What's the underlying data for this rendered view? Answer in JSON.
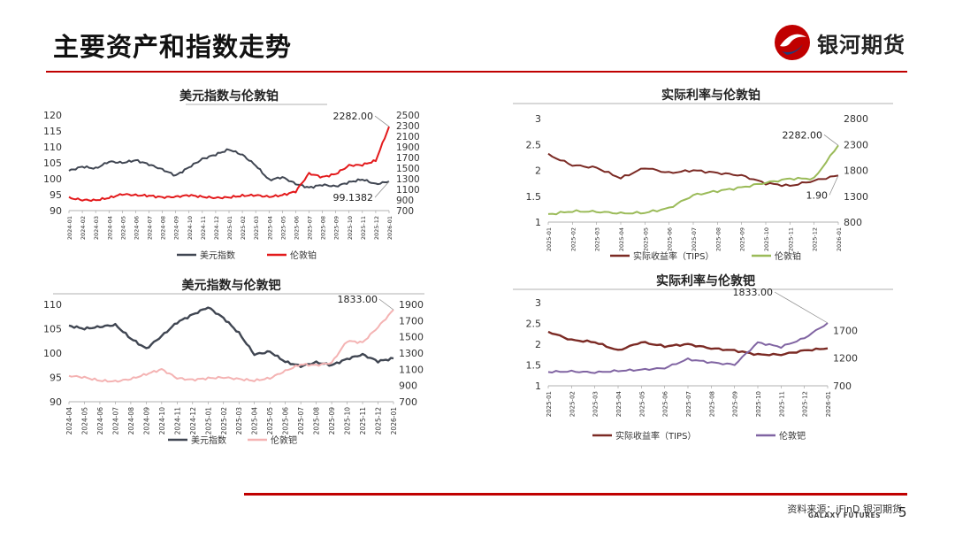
{
  "page": {
    "title": "主要资产和指数走势",
    "logo_text": "银河期货",
    "source": "资料来源：iFinD 银河期货",
    "galaxy": "GALAXY FUTURES",
    "page_number": "5"
  },
  "colors": {
    "accent": "#c00000",
    "dxy": "#404652",
    "pt": "#e31a1c",
    "pd": "#f4b3b3",
    "tips": "#7b2a24",
    "pt_green": "#9bbb59",
    "pd_purple": "#8064a2"
  },
  "chart_data": [
    {
      "type": "line",
      "title": "美元指数与伦敦铂",
      "x_ticks": [
        "2024-01",
        "2024-02",
        "2024-03",
        "2024-04",
        "2024-05",
        "2024-06",
        "2024-07",
        "2024-08",
        "2024-09",
        "2024-10",
        "2024-11",
        "2024-12",
        "2025-01",
        "2025-02",
        "2025-03",
        "2025-04",
        "2025-05",
        "2025-06",
        "2025-07",
        "2025-08",
        "2025-09",
        "2025-10",
        "2025-11",
        "2025-12",
        "2026-01"
      ],
      "y_left": {
        "min": 90,
        "max": 120,
        "ticks": [
          "90",
          "95",
          "100",
          "105",
          "110",
          "115",
          "120"
        ]
      },
      "y_right": {
        "min": 700,
        "max": 2500,
        "ticks": [
          "700",
          "900",
          "1100",
          "1300",
          "1500",
          "1700",
          "1900",
          "2100",
          "2300",
          "2500"
        ]
      },
      "series": [
        {
          "name": "美元指数",
          "axis": "left",
          "color": "#404652",
          "values": [
            102.5,
            103.8,
            103.2,
            105.4,
            105.0,
            105.8,
            104.5,
            102.9,
            101.0,
            103.6,
            106.2,
            107.6,
            109.2,
            107.5,
            104.2,
            99.6,
            100.5,
            98.4,
            97.2,
            98.1,
            97.6,
            98.9,
            99.8,
            98.3,
            99.1382
          ]
        },
        {
          "name": "伦敦铂",
          "axis": "right",
          "color": "#e31a1c",
          "values": [
            940,
            900,
            895,
            940,
            1010,
            990,
            980,
            950,
            960,
            990,
            960,
            940,
            950,
            980,
            990,
            960,
            990,
            1060,
            1400,
            1330,
            1390,
            1550,
            1560,
            1640,
            2282
          ]
        }
      ],
      "annotations": [
        {
          "text": "2282.00",
          "series": 1
        },
        {
          "text": "99.1382",
          "series": 0
        }
      ]
    },
    {
      "type": "line",
      "title": "实际利率与伦敦铂",
      "x_ticks": [
        "2025-01",
        "2025-02",
        "2025-03",
        "2025-04",
        "2025-05",
        "2025-06",
        "2025-07",
        "2025-08",
        "2025-09",
        "2025-10",
        "2025-11",
        "2025-12",
        "2026-01"
      ],
      "y_left": {
        "min": 1,
        "max": 3,
        "ticks": [
          "1",
          "1.5",
          "2",
          "2.5",
          "3"
        ]
      },
      "y_right": {
        "min": 800,
        "max": 2800,
        "ticks": [
          "800",
          "1300",
          "1800",
          "2300",
          "2800"
        ]
      },
      "series": [
        {
          "name": "实际收益率（TIPS）",
          "axis": "left",
          "color": "#7b2a24",
          "values": [
            2.3,
            2.1,
            2.05,
            1.85,
            2.05,
            1.95,
            2.0,
            1.95,
            1.9,
            1.75,
            1.7,
            1.8,
            1.9
          ]
        },
        {
          "name": "伦敦铂",
          "axis": "right",
          "color": "#9bbb59",
          "values": [
            950,
            1010,
            1000,
            970,
            980,
            1070,
            1320,
            1400,
            1470,
            1560,
            1640,
            1640,
            2282
          ]
        }
      ],
      "annotations": [
        {
          "text": "2282.00",
          "series": 1
        },
        {
          "text": "1.90",
          "series": 0
        }
      ]
    },
    {
      "type": "line",
      "title": "美元指数与伦敦钯",
      "x_ticks": [
        "2024-04",
        "2024-05",
        "2024-06",
        "2024-07",
        "2024-08",
        "2024-09",
        "2024-10",
        "2024-11",
        "2024-12",
        "2025-01",
        "2025-02",
        "2025-03",
        "2025-04",
        "2025-05",
        "2025-06",
        "2025-07",
        "2025-08",
        "2025-09",
        "2025-10",
        "2025-11",
        "2025-12",
        "2026-01"
      ],
      "y_left": {
        "min": 90,
        "max": 110,
        "ticks": [
          "90",
          "95",
          "100",
          "105",
          "110"
        ]
      },
      "y_right": {
        "min": 700,
        "max": 1900,
        "ticks": [
          "700",
          "900",
          "1100",
          "1300",
          "1500",
          "1700",
          "1900"
        ]
      },
      "series": [
        {
          "name": "美元指数",
          "axis": "left",
          "color": "#404652",
          "values": [
            105.6,
            105.0,
            105.4,
            105.8,
            103.0,
            100.9,
            103.5,
            106.3,
            107.9,
            109.4,
            107.2,
            104.1,
            99.7,
            100.3,
            98.2,
            97.3,
            98.1,
            97.5,
            98.8,
            99.7,
            98.3,
            98.9
          ]
        },
        {
          "name": "伦敦钯",
          "axis": "right",
          "color": "#f4b3b3",
          "values": [
            1020,
            1000,
            960,
            950,
            980,
            1040,
            1100,
            990,
            970,
            990,
            1000,
            980,
            960,
            990,
            1080,
            1160,
            1150,
            1180,
            1450,
            1430,
            1620,
            1833
          ]
        }
      ],
      "annotations": [
        {
          "text": "1833.00",
          "series": 1
        }
      ]
    },
    {
      "type": "line",
      "title": "实际利率与伦敦钯",
      "x_ticks": [
        "2025-01",
        "2025-02",
        "2025-03",
        "2025-04",
        "2025-05",
        "2025-06",
        "2025-07",
        "2025-08",
        "2025-09",
        "2025-10",
        "2025-11",
        "2025-12",
        "2026-01"
      ],
      "y_left": {
        "min": 1,
        "max": 3,
        "ticks": [
          "1",
          "1.5",
          "2",
          "2.5",
          "3"
        ]
      },
      "y_right": {
        "min": 700,
        "max": 2200,
        "ticks": [
          "700",
          "1200",
          "1700"
        ]
      },
      "series": [
        {
          "name": "实际收益率（TIPS）",
          "axis": "left",
          "color": "#7b2a24",
          "values": [
            2.3,
            2.1,
            2.05,
            1.85,
            2.05,
            1.95,
            2.0,
            1.9,
            1.85,
            1.75,
            1.75,
            1.85,
            1.9
          ]
        },
        {
          "name": "伦敦钯",
          "axis": "right",
          "color": "#8064a2",
          "values": [
            950,
            960,
            940,
            970,
            990,
            1020,
            1180,
            1120,
            1080,
            1480,
            1400,
            1560,
            1833
          ]
        }
      ],
      "annotations": [
        {
          "text": "1833.00",
          "series": 1
        }
      ]
    }
  ]
}
